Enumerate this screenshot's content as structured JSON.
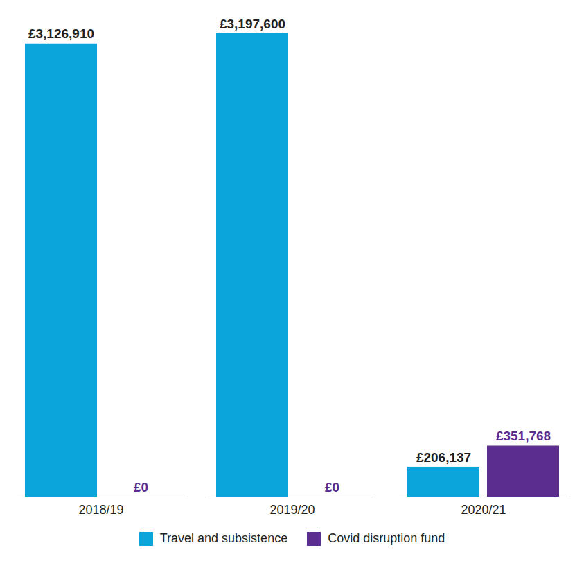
{
  "chart_data": {
    "type": "bar",
    "categories": [
      "2018/19",
      "2019/20",
      "2020/21"
    ],
    "series": [
      {
        "name": "Travel and subsistence",
        "color": "#0ba5dc",
        "values": [
          3126910,
          3197600,
          206137
        ],
        "value_labels": [
          "£3,126,910",
          "£3,197,600",
          "£206,137"
        ]
      },
      {
        "name": "Covid disruption fund",
        "color": "#5b2d8e",
        "values": [
          0,
          0,
          351768
        ],
        "value_labels": [
          "£0",
          "£0",
          "£351,768"
        ]
      }
    ],
    "ylim": [
      0,
      3197600
    ],
    "data_labels": true,
    "tick_labels": "x",
    "legend": "bottom",
    "grid": false
  }
}
